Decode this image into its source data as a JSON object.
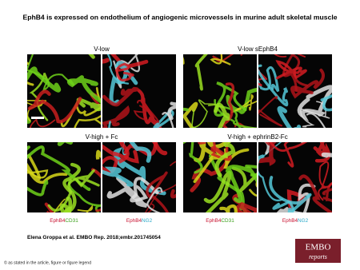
{
  "title": "EphB4 is expressed on endothelium of angiogenic microvessels in murine adult skeletal muscle",
  "panels": [
    {
      "label": "V-low"
    },
    {
      "label": "V-low sEphB4"
    },
    {
      "label": "V-high + Fc"
    },
    {
      "label": "V-high + ephrinB2-Fc"
    }
  ],
  "stain_labels": [
    {
      "first": "EphB4",
      "second": "CD31"
    },
    {
      "first": "EphB4",
      "second": "NG2"
    },
    {
      "first": "EphB4",
      "second": "CD31"
    },
    {
      "first": "EphB4",
      "second": "NG2"
    }
  ],
  "citation": "Elena Groppa et al. EMBO Rep. 2018;embr.201745054",
  "logo": {
    "top": "EMBO",
    "bottom": "reports"
  },
  "footer": "© as stated in the article, figure or figure legend"
}
